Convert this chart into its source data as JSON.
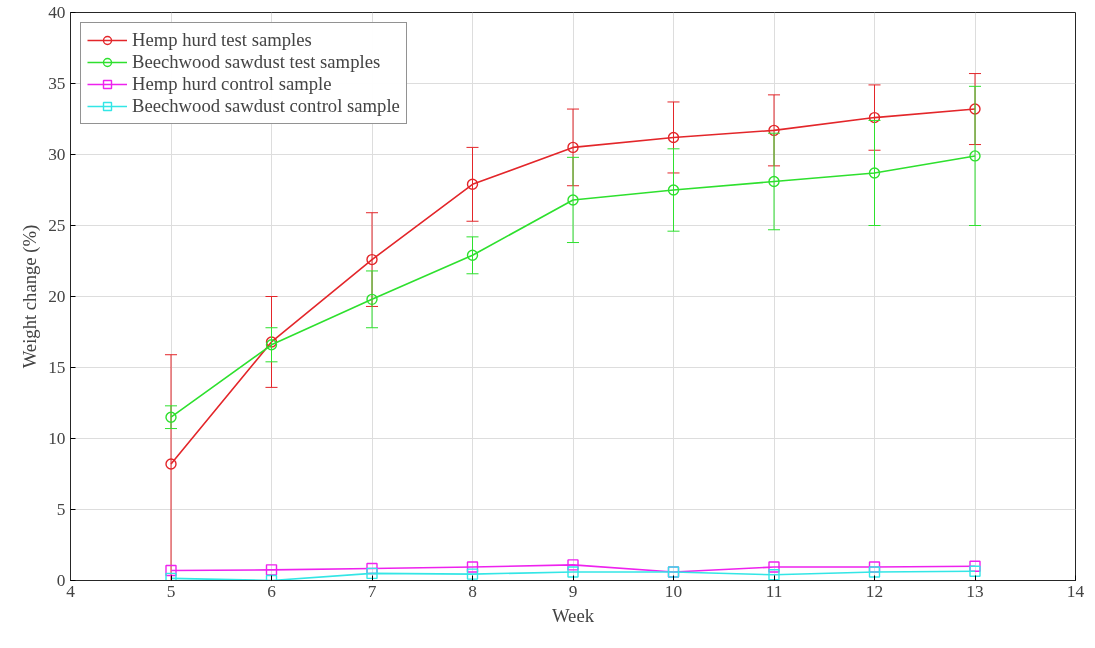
{
  "chart_data": {
    "type": "line",
    "xlabel": "Week",
    "ylabel": "Weight change (%)",
    "x": [
      5,
      6,
      7,
      8,
      9,
      10,
      11,
      12,
      13
    ],
    "xlim": [
      4,
      14
    ],
    "xticks": [
      4,
      5,
      6,
      7,
      8,
      9,
      10,
      11,
      12,
      13,
      14
    ],
    "ylim": [
      0,
      40
    ],
    "yticks": [
      0,
      5,
      10,
      15,
      20,
      25,
      30,
      35,
      40
    ],
    "grid": true,
    "legend": "top left",
    "line_style": "solid",
    "series": [
      {
        "name": "Hemp hurd test samples",
        "color": "#e3262a",
        "marker": "circle",
        "values": [
          8.2,
          16.8,
          22.6,
          27.9,
          30.5,
          31.2,
          31.7,
          32.6,
          33.2
        ],
        "errors": [
          [
            0,
            15.9
          ],
          3.2,
          3.3,
          2.6,
          2.7,
          2.5,
          2.5,
          2.3,
          2.5
        ]
      },
      {
        "name": "Beechwood sawdust test samples",
        "color": "#2ee02e",
        "marker": "circle",
        "values": [
          11.5,
          16.6,
          19.8,
          22.9,
          26.8,
          27.5,
          28.1,
          28.7,
          29.9
        ],
        "errors": [
          0.8,
          1.2,
          2.0,
          1.3,
          3.0,
          2.9,
          3.4,
          3.7,
          4.9
        ]
      },
      {
        "name": "Hemp hurd control sample",
        "color": "#ee22ee",
        "marker": "square",
        "values": [
          0.7,
          0.75,
          0.85,
          0.95,
          1.1,
          0.6,
          0.95,
          0.95,
          1.0
        ]
      },
      {
        "name": "Beechwood sawdust control sample",
        "color": "#33e6e6",
        "marker": "square",
        "values": [
          0.15,
          0.0,
          0.5,
          0.45,
          0.6,
          0.6,
          0.4,
          0.6,
          0.65
        ]
      }
    ]
  }
}
